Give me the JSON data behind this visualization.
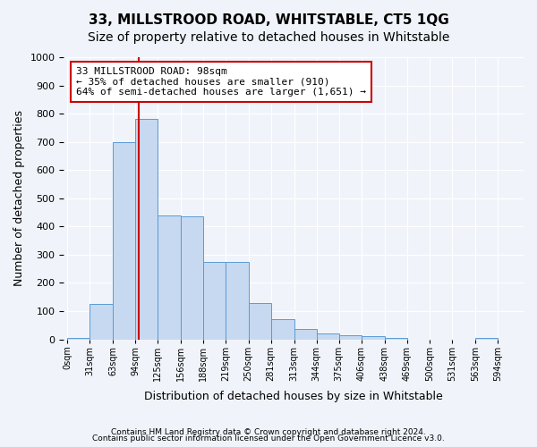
{
  "title": "33, MILLSTROOD ROAD, WHITSTABLE, CT5 1QG",
  "subtitle": "Size of property relative to detached houses in Whitstable",
  "xlabel": "Distribution of detached houses by size in Whitstable",
  "ylabel": "Number of detached properties",
  "bar_edges": [
    0,
    31,
    63,
    94,
    125,
    156,
    188,
    219,
    250,
    281,
    313,
    344,
    375,
    406,
    438,
    469,
    500,
    531,
    563,
    594,
    625
  ],
  "bar_heights": [
    5,
    125,
    700,
    780,
    440,
    435,
    275,
    275,
    130,
    70,
    38,
    20,
    15,
    10,
    5,
    0,
    0,
    0,
    5,
    0
  ],
  "bar_color": "#c6d9f0",
  "bar_edge_color": "#5b9bd5",
  "vline_x": 98,
  "vline_color": "#cc0000",
  "annotation_text": "33 MILLSTROOD ROAD: 98sqm\n← 35% of detached houses are smaller (910)\n64% of semi-detached houses are larger (1,651) →",
  "annotation_box_color": "#cc0000",
  "annotation_bg": "#ffffff",
  "ylim": [
    0,
    1000
  ],
  "yticks": [
    0,
    100,
    200,
    300,
    400,
    500,
    600,
    700,
    800,
    900,
    1000
  ],
  "footer1": "Contains HM Land Registry data © Crown copyright and database right 2024.",
  "footer2": "Contains public sector information licensed under the Open Government Licence v3.0.",
  "bg_color": "#f0f4fa",
  "plot_bg_color": "#f0f4fa",
  "grid_color": "#ffffff",
  "title_fontsize": 11,
  "subtitle_fontsize": 10,
  "xlabel_fontsize": 9,
  "ylabel_fontsize": 9
}
